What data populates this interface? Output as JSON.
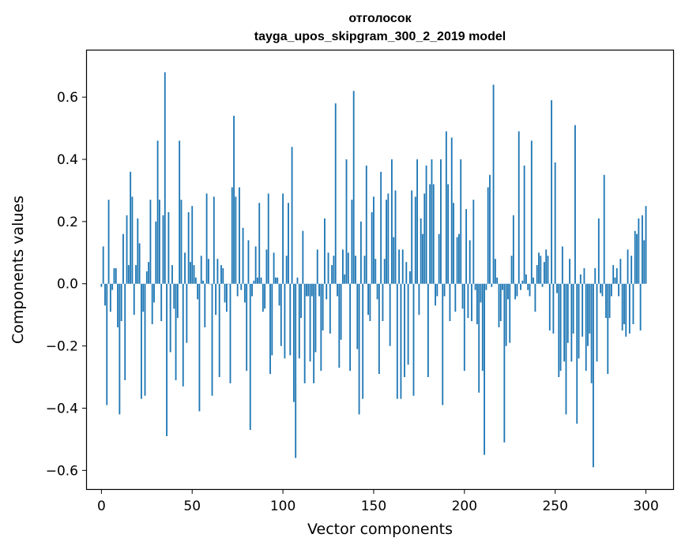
{
  "chart_data": {
    "type": "bar",
    "title_line1": "отголосок",
    "title_line2": "tayga_upos_skipgram_300_2_2019 model",
    "xlabel": "Vector components",
    "ylabel": "Components values",
    "xlim": [
      -8,
      315
    ],
    "ylim": [
      -0.66,
      0.75
    ],
    "x_ticks": [
      0,
      50,
      100,
      150,
      200,
      250,
      300
    ],
    "x_tick_labels": [
      "0",
      "50",
      "100",
      "150",
      "200",
      "250",
      "300"
    ],
    "y_ticks": [
      -0.6,
      -0.4,
      -0.2,
      0.0,
      0.2,
      0.4,
      0.6
    ],
    "y_tick_labels": [
      "−0.6",
      "−0.4",
      "−0.2",
      "0.0",
      "0.2",
      "0.4",
      "0.6"
    ],
    "bar_color": "#1f77b4",
    "grid": false,
    "x_start": 0,
    "values": [
      -0.01,
      0.12,
      -0.07,
      -0.39,
      0.27,
      -0.09,
      -0.02,
      0.05,
      0.05,
      -0.14,
      -0.42,
      -0.12,
      0.16,
      -0.31,
      0.22,
      0.06,
      0.36,
      0.28,
      -0.1,
      0.06,
      0.21,
      0.13,
      -0.37,
      -0.09,
      -0.36,
      0.04,
      0.07,
      0.27,
      -0.13,
      -0.06,
      0.2,
      0.46,
      0.27,
      -0.12,
      0.22,
      0.68,
      -0.49,
      0.23,
      -0.22,
      0.06,
      -0.08,
      -0.31,
      -0.11,
      0.46,
      0.27,
      -0.33,
      0.1,
      -0.19,
      0.23,
      0.07,
      0.25,
      0.06,
      0.02,
      -0.05,
      -0.41,
      0.09,
      0.01,
      -0.14,
      0.29,
      0.08,
      0.0,
      -0.36,
      0.28,
      -0.1,
      0.08,
      -0.3,
      0.06,
      0.05,
      -0.06,
      -0.09,
      0.0,
      -0.32,
      0.31,
      0.54,
      0.28,
      -0.04,
      0.31,
      -0.02,
      0.18,
      -0.06,
      -0.28,
      0.14,
      -0.47,
      -0.04,
      0.01,
      0.12,
      0.02,
      0.26,
      0.02,
      -0.09,
      -0.08,
      0.11,
      0.29,
      -0.29,
      -0.23,
      0.1,
      0.02,
      0.02,
      -0.07,
      -0.2,
      0.29,
      -0.24,
      0.09,
      0.26,
      -0.23,
      0.44,
      -0.38,
      -0.56,
      0.02,
      -0.24,
      -0.11,
      0.17,
      -0.32,
      -0.04,
      -0.04,
      -0.25,
      -0.04,
      -0.32,
      -0.22,
      0.11,
      -0.04,
      -0.28,
      -0.15,
      0.21,
      -0.05,
      0.1,
      -0.16,
      0.06,
      0.09,
      0.58,
      -0.04,
      -0.27,
      -0.18,
      0.11,
      0.03,
      0.4,
      0.1,
      -0.28,
      0.27,
      0.62,
      0.09,
      -0.21,
      -0.42,
      0.2,
      -0.37,
      0.09,
      0.38,
      -0.1,
      -0.12,
      0.23,
      0.28,
      0.08,
      -0.05,
      -0.29,
      0.36,
      -0.12,
      0.08,
      0.27,
      0.29,
      -0.2,
      0.4,
      0.15,
      0.3,
      -0.37,
      0.11,
      -0.37,
      0.11,
      -0.3,
      0.07,
      -0.26,
      0.04,
      0.3,
      -0.36,
      0.28,
      0.4,
      -0.1,
      0.21,
      0.16,
      0.29,
      0.38,
      -0.3,
      0.32,
      0.4,
      0.32,
      -0.07,
      -0.04,
      0.16,
      0.4,
      -0.39,
      -0.04,
      0.49,
      0.32,
      -0.12,
      0.47,
      0.26,
      -0.09,
      0.15,
      0.16,
      0.4,
      -0.08,
      -0.28,
      0.24,
      -0.11,
      0.14,
      -0.12,
      0.27,
      -0.02,
      -0.13,
      -0.35,
      -0.06,
      -0.28,
      -0.55,
      -0.02,
      0.31,
      0.35,
      -0.01,
      0.64,
      0.08,
      0.02,
      -0.14,
      -0.12,
      -0.02,
      -0.51,
      -0.2,
      -0.05,
      -0.19,
      0.09,
      0.22,
      -0.05,
      -0.04,
      0.49,
      -0.02,
      0.01,
      0.38,
      0.03,
      -0.02,
      -0.04,
      0.46,
      0.02,
      -0.09,
      0.06,
      0.1,
      0.09,
      -0.01,
      0.07,
      0.11,
      0.09,
      -0.15,
      0.59,
      -0.16,
      0.39,
      -0.03,
      -0.3,
      -0.28,
      0.12,
      -0.25,
      -0.42,
      -0.19,
      0.08,
      -0.25,
      -0.16,
      0.51,
      -0.45,
      -0.24,
      0.03,
      -0.17,
      0.05,
      -0.28,
      -0.2,
      -0.16,
      -0.32,
      -0.59,
      0.05,
      -0.25,
      0.21,
      -0.03,
      -0.04,
      0.35,
      -0.11,
      -0.29,
      -0.11,
      -0.04,
      0.06,
      0.02,
      0.05,
      -0.04,
      0.08,
      -0.15,
      -0.13,
      -0.17,
      0.11,
      -0.16,
      0.09,
      -0.13,
      0.17,
      0.16,
      0.21,
      -0.15,
      0.22,
      0.14,
      0.25
    ]
  }
}
